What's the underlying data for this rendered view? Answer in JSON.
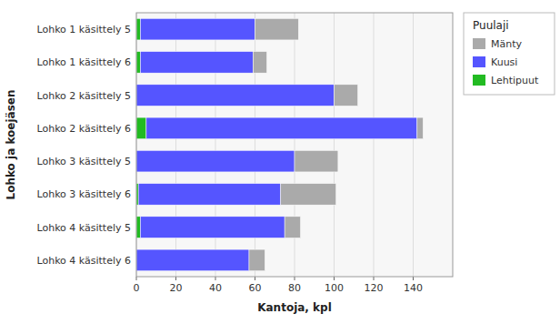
{
  "chart_data": {
    "type": "bar",
    "orientation": "horizontal",
    "stacked": true,
    "categories": [
      "Lohko 1 käsittely 5",
      "Lohko 1 käsittely 6",
      "Lohko 2 käsittely 5",
      "Lohko 2 käsittely 6",
      "Lohko 3 käsittely 5",
      "Lohko 3 käsittely 6",
      "Lohko 4 käsittely 5",
      "Lohko 4 käsittely 6"
    ],
    "series": [
      {
        "name": "Lehtipuut",
        "color": "#22bb22",
        "values": [
          2,
          2,
          0,
          5,
          0,
          1,
          2,
          0
        ]
      },
      {
        "name": "Kuusi",
        "color": "#5555ff",
        "values": [
          58,
          57,
          100,
          137,
          80,
          72,
          73,
          57
        ]
      },
      {
        "name": "Mänty",
        "color": "#aaaaaa",
        "values": [
          22,
          7,
          12,
          3,
          22,
          28,
          8,
          8
        ]
      }
    ],
    "x_label": "Kantoja, kpl",
    "y_label": "Lohko ja koejäsen",
    "legend_title": "Puulaji",
    "legend": "right",
    "xlim": [
      0,
      160
    ],
    "xticks": [
      0,
      20,
      40,
      60,
      80,
      100,
      120,
      140
    ],
    "grid": true
  }
}
